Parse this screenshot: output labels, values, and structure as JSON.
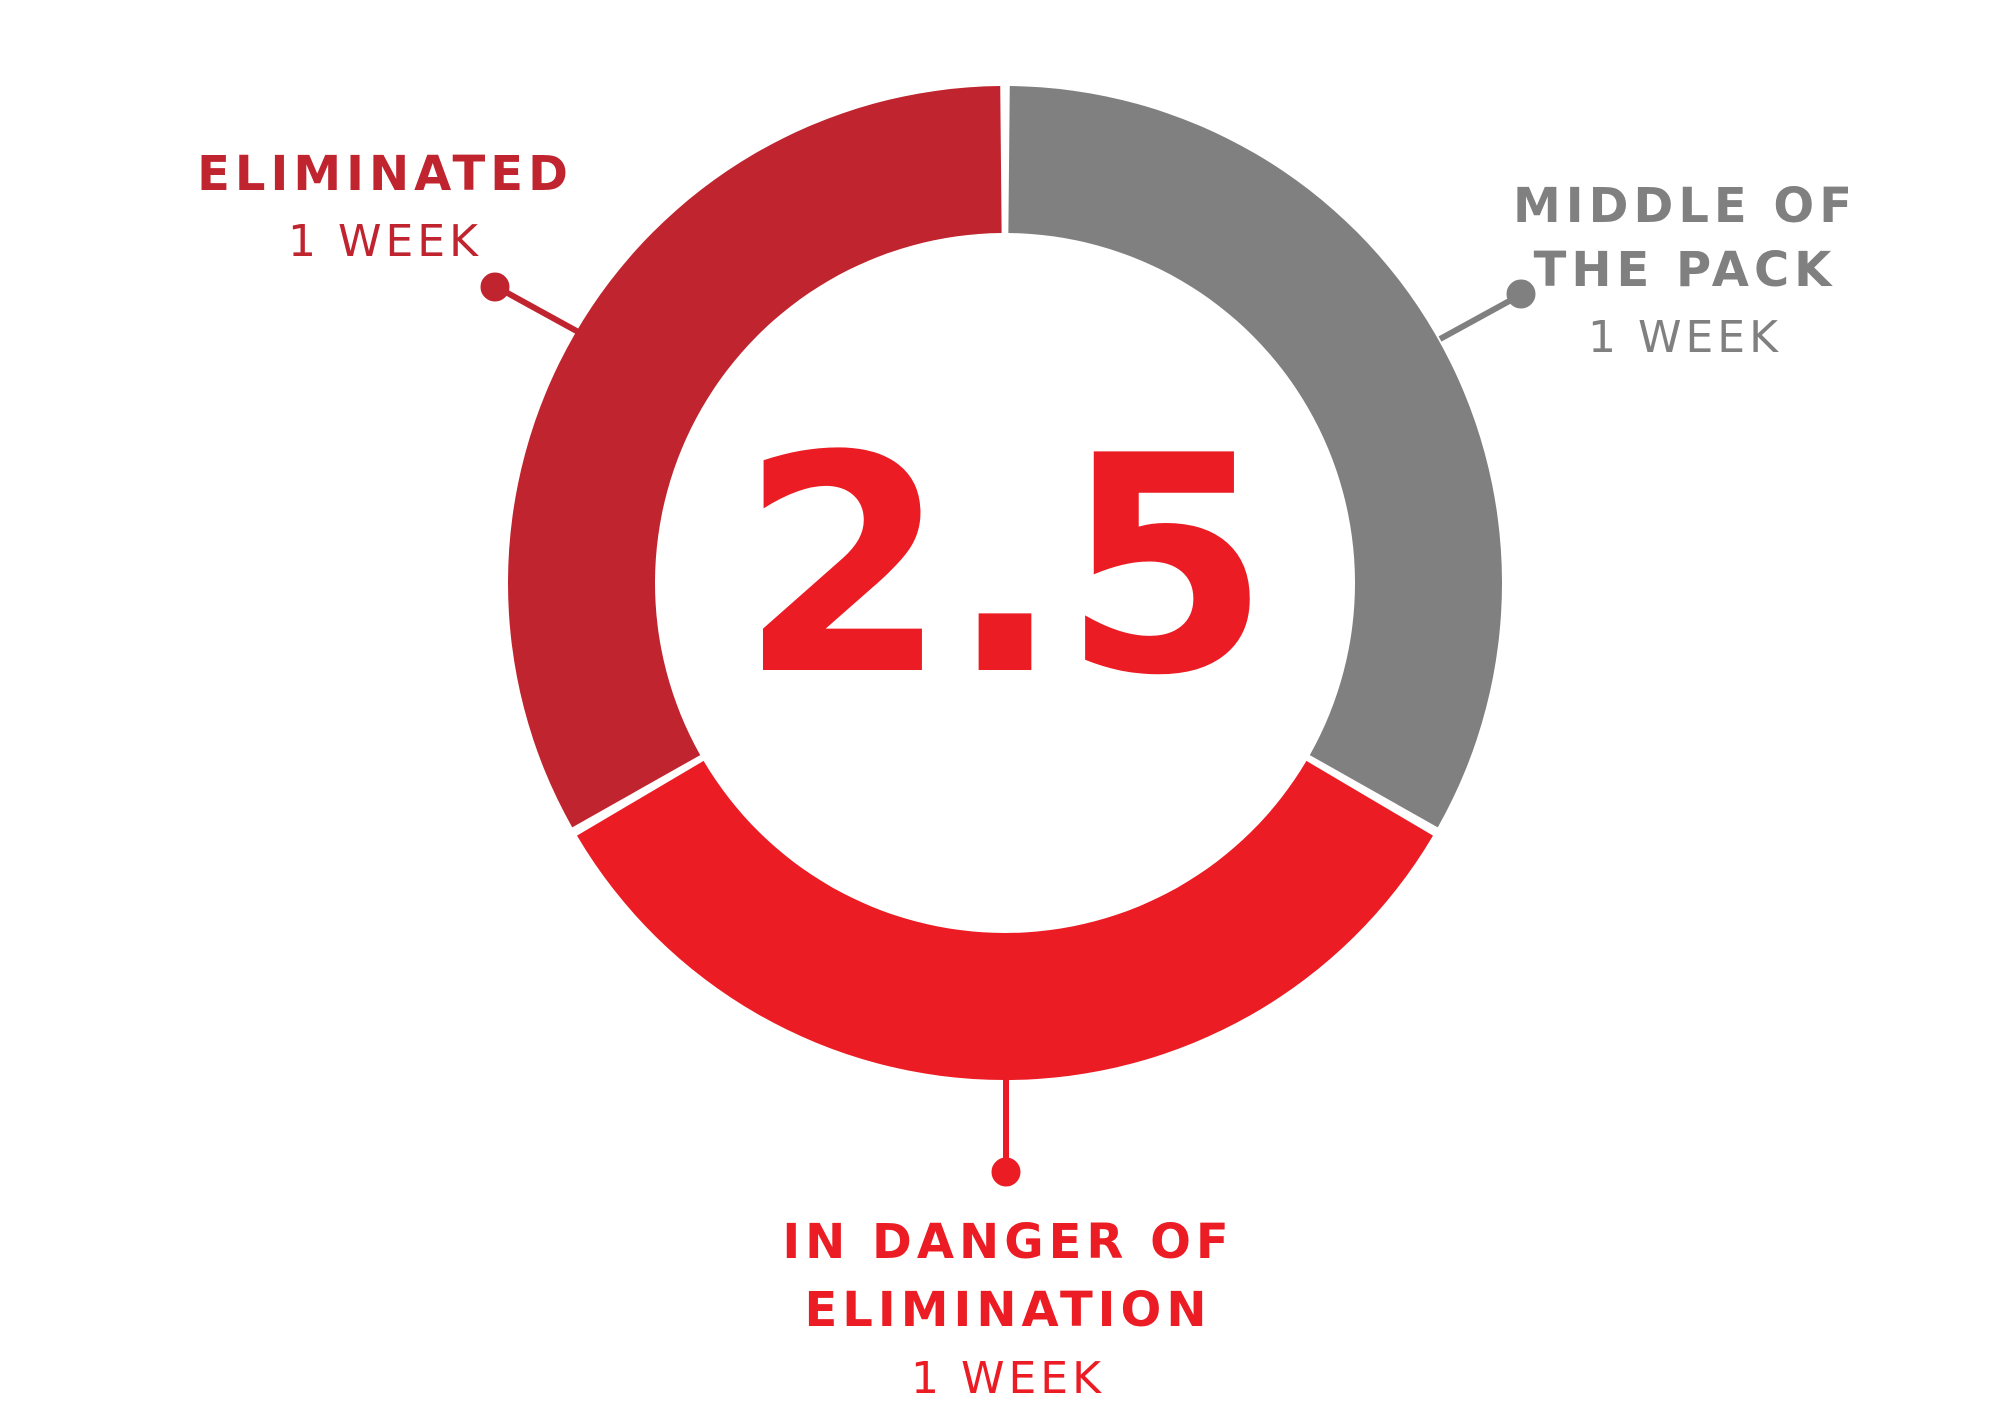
{
  "chart_data": {
    "type": "pie",
    "center_label": "2.5",
    "colors": {
      "eliminated": "#C0242F",
      "middle": "#808080",
      "danger": "#EC1C24"
    },
    "slices": [
      {
        "key": "eliminated",
        "label_lines": [
          "ELIMINATED"
        ],
        "value_text": "1 WEEK",
        "value": 1
      },
      {
        "key": "middle",
        "label_lines": [
          "MIDDLE OF",
          "THE PACK"
        ],
        "value_text": "1 WEEK",
        "value": 1
      },
      {
        "key": "danger",
        "label_lines": [
          "IN DANGER OF",
          "ELIMINATION"
        ],
        "value_text": "1 WEEK",
        "value": 1
      }
    ]
  }
}
